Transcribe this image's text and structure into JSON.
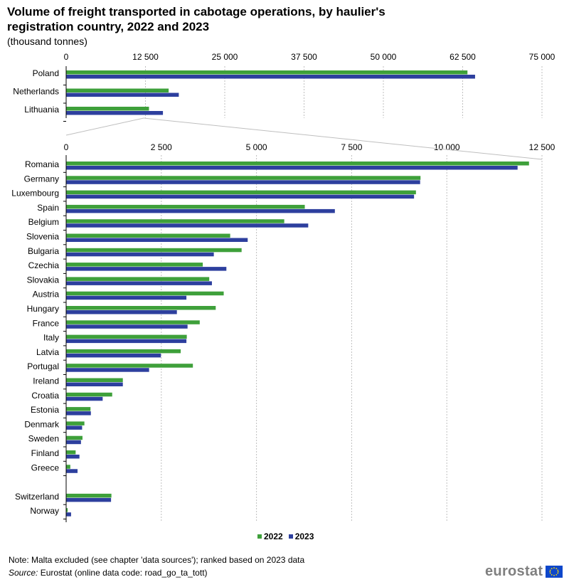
{
  "header": {
    "title": "Volume of freight transported in cabotage operations, by haulier's registration country, 2022 and 2023",
    "subtitle": "(thousand  tonnes)"
  },
  "colors": {
    "s2022": "#3ea03a",
    "s2023": "#2d3f9e",
    "grid": "#bfbfbf"
  },
  "chart_data": [
    {
      "type": "bar",
      "orientation": "horizontal",
      "title": "Volume of freight transported in cabotage operations, by haulier's registration country, 2022 and 2023",
      "ylabel": "thousand tonnes",
      "xlim": [
        0,
        75000
      ],
      "xticks": [
        0,
        12500,
        25000,
        37500,
        50000,
        62500,
        75000
      ],
      "xtick_labels": [
        "0",
        "12 500",
        "25 000",
        "37 500",
        "50 000",
        "62 500",
        "75 000"
      ],
      "grid": true,
      "categories": [
        "Poland",
        "Netherlands",
        "Lithuania"
      ],
      "series": [
        {
          "name": "2022",
          "values": [
            63200,
            16100,
            13000
          ]
        },
        {
          "name": "2023",
          "values": [
            64400,
            17700,
            15200
          ]
        }
      ]
    },
    {
      "type": "bar",
      "orientation": "horizontal",
      "xlim": [
        0,
        12500
      ],
      "xticks": [
        0,
        2500,
        5000,
        7500,
        10000,
        12500
      ],
      "xtick_labels": [
        "0",
        "2 500",
        "5 000",
        "7 500",
        "10 000",
        "12 500"
      ],
      "grid": true,
      "categories": [
        "Romania",
        "Germany",
        "Luxembourg",
        "Spain",
        "Belgium",
        "Slovenia",
        "Bulgaria",
        "Czechia",
        "Slovakia",
        "Austria",
        "Hungary",
        "France",
        "Italy",
        "Latvia",
        "Portugal",
        "Ireland",
        "Croatia",
        "Estonia",
        "Denmark",
        "Sweden",
        "Finland",
        "Greece",
        "",
        "Switzerland",
        "Norway"
      ],
      "series": [
        {
          "name": "2022",
          "values": [
            12150,
            9300,
            9180,
            6260,
            5720,
            4300,
            4600,
            3580,
            3750,
            4130,
            3920,
            3500,
            3160,
            3000,
            3320,
            1480,
            1200,
            630,
            470,
            420,
            240,
            100,
            null,
            1180,
            30
          ]
        },
        {
          "name": "2023",
          "values": [
            11850,
            9290,
            9130,
            7050,
            6350,
            4760,
            3870,
            4200,
            3820,
            3150,
            2900,
            3180,
            3150,
            2480,
            2170,
            1480,
            950,
            640,
            410,
            380,
            340,
            290,
            null,
            1170,
            120
          ]
        }
      ]
    }
  ],
  "legend": {
    "item_2022": "2022",
    "item_2023": "2023"
  },
  "footer": {
    "note": "Note: Malta excluded  (see chapter 'data sources'); ranked based on 2023 data",
    "source_label": "Source:",
    "source_text": " Eurostat (online data code: road_go_ta_tott)",
    "logo": "eurostat"
  }
}
